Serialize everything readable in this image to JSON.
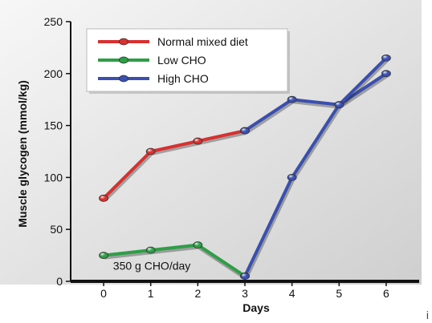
{
  "chart_data": {
    "type": "line",
    "xlabel": "Days",
    "ylabel": "Muscle glycogen (mmol/kg)",
    "x": [
      0,
      1,
      2,
      3,
      4,
      5,
      6
    ],
    "xlim": [
      -0.7,
      6.7
    ],
    "ylim": [
      0,
      250
    ],
    "yticks": [
      0,
      50,
      100,
      150,
      200,
      250
    ],
    "grid": false,
    "legend_position": "top-left",
    "series": [
      {
        "name": "Normal mixed diet",
        "color": "#d93030",
        "points": [
          [
            0,
            80
          ],
          [
            1,
            125
          ],
          [
            2,
            135
          ],
          [
            3,
            145
          ]
        ]
      },
      {
        "name": "Low CHO",
        "color": "#2e9e46",
        "points": [
          [
            0,
            25
          ],
          [
            1,
            30
          ],
          [
            2,
            35
          ],
          [
            3,
            5
          ]
        ]
      },
      {
        "name": "High CHO",
        "color": "#3a4fb0",
        "points": [
          [
            3,
            145
          ],
          [
            4,
            175
          ],
          [
            5,
            170
          ],
          [
            6,
            200
          ]
        ]
      },
      {
        "name": "",
        "color": "#3a4fb0",
        "points": [
          [
            3,
            5
          ],
          [
            4,
            100
          ],
          [
            5,
            170
          ],
          [
            6,
            215
          ]
        ]
      }
    ],
    "annotations": [
      {
        "text": "350 g CHO/day",
        "x": 0.2,
        "y": 15
      }
    ]
  },
  "page": {
    "corner_glyph": "i"
  }
}
